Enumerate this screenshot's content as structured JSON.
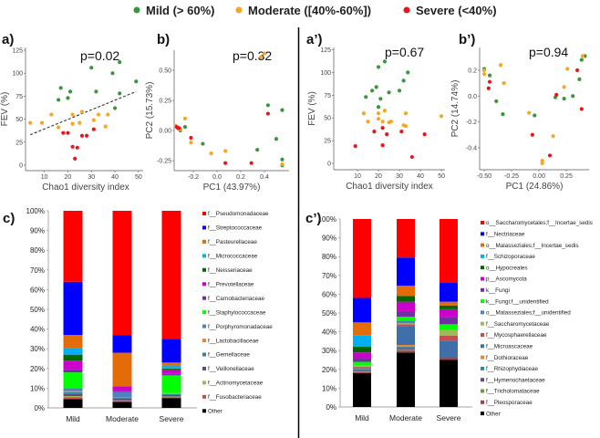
{
  "chart_data": {
    "groups": [
      {
        "key": "mild",
        "label": "Mild (> 60%)",
        "color": "#3a963a"
      },
      {
        "key": "moderate",
        "label": "Moderate ([40%-60%])",
        "color": "#f5a623"
      },
      {
        "key": "severe",
        "label": "Severe (<40%)",
        "color": "#e8161b"
      }
    ],
    "scatter": [
      {
        "panel": "a)",
        "type": "scatter",
        "title": "p=0.02",
        "xlabel": "Chao1 diversity index",
        "ylabel": "FEV (%)",
        "xlim": [
          2,
          52
        ],
        "ylim": [
          -6,
          128
        ],
        "xticks": [
          10,
          20,
          30,
          40,
          50
        ],
        "yticks": [
          0,
          25,
          50,
          75,
          100,
          125
        ],
        "xtick_labels": [
          "10",
          "20",
          "30",
          "40",
          "50"
        ],
        "ytick_labels": [
          "0",
          "25",
          "50",
          "75",
          "100",
          "125"
        ],
        "trendline": [
          [
            4,
            33
          ],
          [
            49,
            80
          ]
        ],
        "points": {
          "mild": [
            [
              16,
              71
            ],
            [
              17,
              84
            ],
            [
              20,
              73
            ],
            [
              21,
              80
            ],
            [
              30,
              106
            ],
            [
              32,
              80
            ],
            [
              39,
              100
            ],
            [
              42,
              112
            ],
            [
              42,
              78
            ],
            [
              40,
              62
            ],
            [
              49,
              91
            ]
          ],
          "moderate": [
            [
              4,
              46
            ],
            [
              9,
              46
            ],
            [
              13,
              55
            ],
            [
              16,
              41
            ],
            [
              22,
              55
            ],
            [
              22,
              45
            ],
            [
              25,
              46
            ],
            [
              26,
              58
            ],
            [
              31,
              49
            ],
            [
              33,
              55
            ],
            [
              36,
              42
            ],
            [
              37,
              55
            ]
          ],
          "severe": [
            [
              18,
              35
            ],
            [
              20,
              35
            ],
            [
              22,
              20
            ],
            [
              24,
              19
            ],
            [
              23,
              7
            ],
            [
              26,
              32
            ],
            [
              28,
              32
            ],
            [
              31,
              39
            ]
          ]
        }
      },
      {
        "panel": "b)",
        "type": "scatter",
        "title": "p=0.32",
        "xlabel": "PC1 (43.97%)",
        "ylabel": "PC2 (15.73%)",
        "xlim": [
          -0.362,
          0.608
        ],
        "ylim": [
          -0.333,
          0.667
        ],
        "xticks": [
          -0.2,
          0,
          0.2,
          0.4
        ],
        "yticks": [
          -0.25,
          0,
          0.25,
          0.5
        ],
        "xtick_labels": [
          "-0.2",
          "0.0",
          "0.2",
          "0.4"
        ],
        "ytick_labels": [
          "-0.25",
          "0.00",
          "0.25",
          "0.50"
        ],
        "points": {
          "mild": [
            [
              -0.27,
              0.03
            ],
            [
              -0.31,
              0.0
            ],
            [
              -0.12,
              -0.11
            ],
            [
              0.34,
              -0.16
            ],
            [
              0.43,
              0.21
            ],
            [
              0.55,
              0.17
            ],
            [
              0.5,
              -0.07
            ],
            [
              0.55,
              -0.24
            ],
            [
              0.55,
              -0.29
            ]
          ],
          "moderate": [
            [
              -0.35,
              0.04
            ],
            [
              -0.27,
              0.1
            ],
            [
              -0.22,
              -0.1
            ],
            [
              -0.05,
              -0.19
            ],
            [
              0.07,
              -0.17
            ],
            [
              0.37,
              0.61
            ],
            [
              0.4,
              0.64
            ],
            [
              -0.31,
              0.01
            ],
            [
              0.55,
              -0.28
            ]
          ],
          "severe": [
            [
              -0.34,
              0.03
            ],
            [
              -0.33,
              0.02
            ],
            [
              -0.32,
              0.02
            ],
            [
              -0.22,
              -0.06
            ],
            [
              0.07,
              -0.27
            ],
            [
              0.29,
              -0.27
            ],
            [
              0.43,
              0.14
            ]
          ]
        }
      },
      {
        "panel": "a’)",
        "type": "scatter",
        "title": "p=0.67",
        "xlabel": "Chao1 diversity index",
        "ylabel": "FEV (%)",
        "xlim": [
          -1.3,
          51.7
        ],
        "ylim": [
          -7,
          127.5
        ],
        "xticks": [
          10,
          20,
          30,
          40,
          50
        ],
        "yticks": [
          0,
          25,
          50,
          75,
          100,
          125
        ],
        "xtick_labels": [
          "10",
          "20",
          "30",
          "40",
          "50"
        ],
        "ytick_labels": [
          "0",
          "25",
          "50",
          "75",
          "100",
          "125"
        ],
        "points": {
          "mild": [
            [
              14,
              73
            ],
            [
              17,
              80
            ],
            [
              19,
              84
            ],
            [
              20,
              106
            ],
            [
              21,
              71
            ],
            [
              20,
              62
            ],
            [
              23,
              112
            ],
            [
              25,
              78
            ],
            [
              30,
              80
            ],
            [
              32,
              91
            ],
            [
              34,
              100
            ]
          ],
          "moderate": [
            [
              13,
              55
            ],
            [
              15,
              46
            ],
            [
              20,
              55
            ],
            [
              20,
              49
            ],
            [
              22,
              46
            ],
            [
              23,
              58
            ],
            [
              25,
              45
            ],
            [
              26,
              46
            ],
            [
              32,
              42
            ],
            [
              33,
              41
            ],
            [
              33,
              55
            ],
            [
              50,
              52
            ]
          ],
          "severe": [
            [
              9,
              19
            ],
            [
              18,
              35
            ],
            [
              22,
              39
            ],
            [
              22,
              20
            ],
            [
              24,
              32
            ],
            [
              31,
              35
            ],
            [
              36,
              7
            ],
            [
              42,
              32
            ]
          ]
        }
      },
      {
        "panel": "b’)",
        "type": "scatter",
        "title": "p=0.94",
        "xlabel": "PC1 (24.86%)",
        "ylabel": "PC2 (14.74%)",
        "xlim": [
          -0.542,
          0.458
        ],
        "ylim": [
          -0.57,
          0.376
        ],
        "xticks": [
          -0.5,
          -0.25,
          0,
          0.25
        ],
        "yticks": [
          -0.4,
          -0.2,
          0,
          0.2
        ],
        "xtick_labels": [
          "-0.50",
          "-0.25",
          "0.00",
          "0.25"
        ],
        "ytick_labels": [
          "-0.4",
          "-0.2",
          "0.0",
          "0.2"
        ],
        "points": {
          "mild": [
            [
              -0.5,
              0.21
            ],
            [
              -0.45,
              0.16
            ],
            [
              -0.39,
              -0.04
            ],
            [
              -0.33,
              -0.14
            ],
            [
              -0.04,
              -0.15
            ],
            [
              0.15,
              -0.01
            ],
            [
              0.23,
              -0.02
            ],
            [
              0.31,
              0.0
            ],
            [
              0.37,
              0.13
            ],
            [
              0.39,
              0.28
            ],
            [
              0.42,
              0.31
            ]
          ],
          "moderate": [
            [
              -0.5,
              0.2
            ],
            [
              -0.5,
              0.17
            ],
            [
              -0.35,
              0.24
            ],
            [
              -0.32,
              0.1
            ],
            [
              -0.09,
              -0.13
            ],
            [
              0.13,
              -0.31
            ],
            [
              0.03,
              -0.5
            ],
            [
              0.03,
              -0.52
            ],
            [
              0.23,
              0.07
            ],
            [
              0.26,
              0.21
            ],
            [
              0.4,
              0.31
            ]
          ],
          "severe": [
            [
              -0.45,
              0.11
            ],
            [
              -0.46,
              0.06
            ],
            [
              -0.06,
              -0.3
            ],
            [
              0.1,
              -0.46
            ],
            [
              0.16,
              0.01
            ],
            [
              0.35,
              0.2
            ],
            [
              0.39,
              -0.1
            ]
          ]
        }
      }
    ],
    "bars": [
      {
        "panel": "c)",
        "type": "bar",
        "stacked": true,
        "categories": [
          "Mild",
          "Moderate",
          "Severe"
        ],
        "ylim": [
          0,
          100
        ],
        "ytick_labels": [
          "0%",
          "10%",
          "20%",
          "30%",
          "40%",
          "50%",
          "60%",
          "70%",
          "80%",
          "90%",
          "100%"
        ],
        "series": [
          {
            "name": "f__Pseudomonadaceae",
            "color": "#ff0000",
            "values": [
              36,
              63,
              65
            ]
          },
          {
            "name": "f__Streptococcaceae",
            "color": "#0000ff",
            "values": [
              27,
              9,
              12
            ]
          },
          {
            "name": "f__Pasteurellaceae",
            "color": "#e36c09",
            "values": [
              6.5,
              17,
              1.5
            ]
          },
          {
            "name": "f__Micrococcaceae",
            "color": "#00b0f0",
            "values": [
              3.5,
              0,
              1.5
            ]
          },
          {
            "name": "f__Neisseriaceae",
            "color": "#006600",
            "values": [
              3,
              0,
              0.5
            ]
          },
          {
            "name": "f__Prevotellaceae",
            "color": "#cc00cc",
            "values": [
              4.5,
              2.5,
              2
            ]
          },
          {
            "name": "f__Carnobacteriaceae",
            "color": "#7030a0",
            "values": [
              1.5,
              0.5,
              1
            ]
          },
          {
            "name": "f__Staphylococcaceae",
            "color": "#00ff00",
            "values": [
              8,
              0,
              9
            ]
          },
          {
            "name": "f__Porphyromonadaceae",
            "color": "#4f81bd",
            "values": [
              1.5,
              2.5,
              0
            ]
          },
          {
            "name": "f__Lactobacillaceae",
            "color": "#e6883a",
            "values": [
              0.5,
              0.2,
              0.5
            ]
          },
          {
            "name": "f__Gemellaceae",
            "color": "#31859c",
            "values": [
              1,
              0.5,
              0.5
            ]
          },
          {
            "name": "f__Veillonellaceae",
            "color": "#604a7b",
            "values": [
              1,
              1,
              0.7
            ]
          },
          {
            "name": "f__Actinomycetaceae",
            "color": "#9bbb59",
            "values": [
              0.5,
              0.3,
              0.3
            ]
          },
          {
            "name": "f__Fusobacteriaceae",
            "color": "#c0504d",
            "values": [
              1,
              0.5,
              0.5
            ]
          },
          {
            "name": "Other",
            "color": "#000000",
            "values": [
              4.5,
              3,
              5
            ]
          }
        ]
      },
      {
        "panel": "c’)",
        "type": "bar",
        "stacked": true,
        "categories": [
          "Mild",
          "Moderate",
          "Severe"
        ],
        "ylim": [
          0,
          100
        ],
        "ytick_labels": [
          "0%",
          "10%",
          "20%",
          "30%",
          "40%",
          "50%",
          "60%",
          "70%",
          "80%",
          "90%",
          "100%"
        ],
        "series": [
          {
            "name": "o__Saccharomycetales;f__Incertae_sedis",
            "color": "#ff0000",
            "values": [
              42,
              20.5,
              34
            ]
          },
          {
            "name": "f__Nectriaceae",
            "color": "#0000ff",
            "values": [
              13,
              15,
              10
            ]
          },
          {
            "name": "o__Malasseziales;f__Incertae_sedis",
            "color": "#e36c09",
            "values": [
              7,
              5.5,
              2
            ]
          },
          {
            "name": "f__Schizoporaceae",
            "color": "#00b0f0",
            "values": [
              6,
              0,
              0
            ]
          },
          {
            "name": "o__Hypocreales",
            "color": "#006600",
            "values": [
              3,
              3,
              2
            ]
          },
          {
            "name": "p__Ascomycota",
            "color": "#cc00cc",
            "values": [
              3,
              5,
              4
            ]
          },
          {
            "name": "k__Fungi",
            "color": "#7030a0",
            "values": [
              2,
              3,
              4
            ]
          },
          {
            "name": "k__Fungi;f__unidentified",
            "color": "#00ff00",
            "values": [
              2,
              2,
              3
            ]
          },
          {
            "name": "o__Malasseziales;f__unidentified",
            "color": "#4f81bd",
            "values": [
              0,
              1.5,
              0
            ]
          },
          {
            "name": "f__Saccharomycetaceae",
            "color": "#9bbb59",
            "values": [
              0.5,
              0.5,
              3
            ]
          },
          {
            "name": "f__Mycosphaerellaceae",
            "color": "#c0504d",
            "values": [
              0.5,
              1,
              3
            ]
          },
          {
            "name": "f__Microascaceae",
            "color": "#3f6fa8",
            "values": [
              0.5,
              10,
              8.5
            ]
          },
          {
            "name": "f__Dothioraceae",
            "color": "#e6883a",
            "values": [
              0.2,
              1,
              0
            ]
          },
          {
            "name": "f__Rhizophydiaceae",
            "color": "#31859c",
            "values": [
              1,
              1,
              0
            ]
          },
          {
            "name": "f__Hymenochaetaceae",
            "color": "#604a7b",
            "values": [
              0.5,
              0.5,
              0.5
            ]
          },
          {
            "name": "f__Tricholomataceae",
            "color": "#77933c",
            "values": [
              0.3,
              0.5,
              0
            ]
          },
          {
            "name": "f__Pleosporaceae",
            "color": "#a0423f",
            "values": [
              0.5,
              1,
              1
            ]
          },
          {
            "name": "Other",
            "color": "#000000",
            "values": [
              18,
              29,
              25
            ]
          }
        ]
      }
    ]
  }
}
